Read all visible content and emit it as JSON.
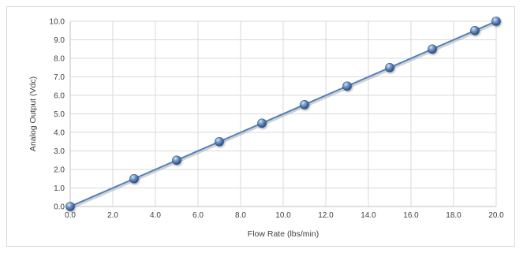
{
  "chart_data": {
    "type": "scatter",
    "title": "",
    "xlabel": "Flow Rate (lbs/min)",
    "ylabel": "Analog Output (Vdc)",
    "xlim": [
      0,
      20
    ],
    "ylim": [
      0,
      10
    ],
    "x_ticks": [
      "0.0",
      "2.0",
      "4.0",
      "6.0",
      "8.0",
      "10.0",
      "12.0",
      "14.0",
      "16.0",
      "18.0",
      "20.0"
    ],
    "y_ticks": [
      "0.0",
      "1.0",
      "2.0",
      "3.0",
      "4.0",
      "5.0",
      "6.0",
      "7.0",
      "8.0",
      "9.0",
      "10.0"
    ],
    "grid": "vertical and horizontal",
    "legend": "none",
    "series": [
      {
        "x": [
          0,
          3,
          5,
          7,
          9,
          11,
          13,
          15,
          17,
          19,
          20
        ],
        "y": [
          0,
          1.5,
          2.5,
          3.5,
          4.5,
          5.5,
          6.5,
          7.5,
          8.5,
          9.5,
          10
        ],
        "color": "#4f81bd",
        "marker": "sphere",
        "line": "straight"
      }
    ]
  }
}
